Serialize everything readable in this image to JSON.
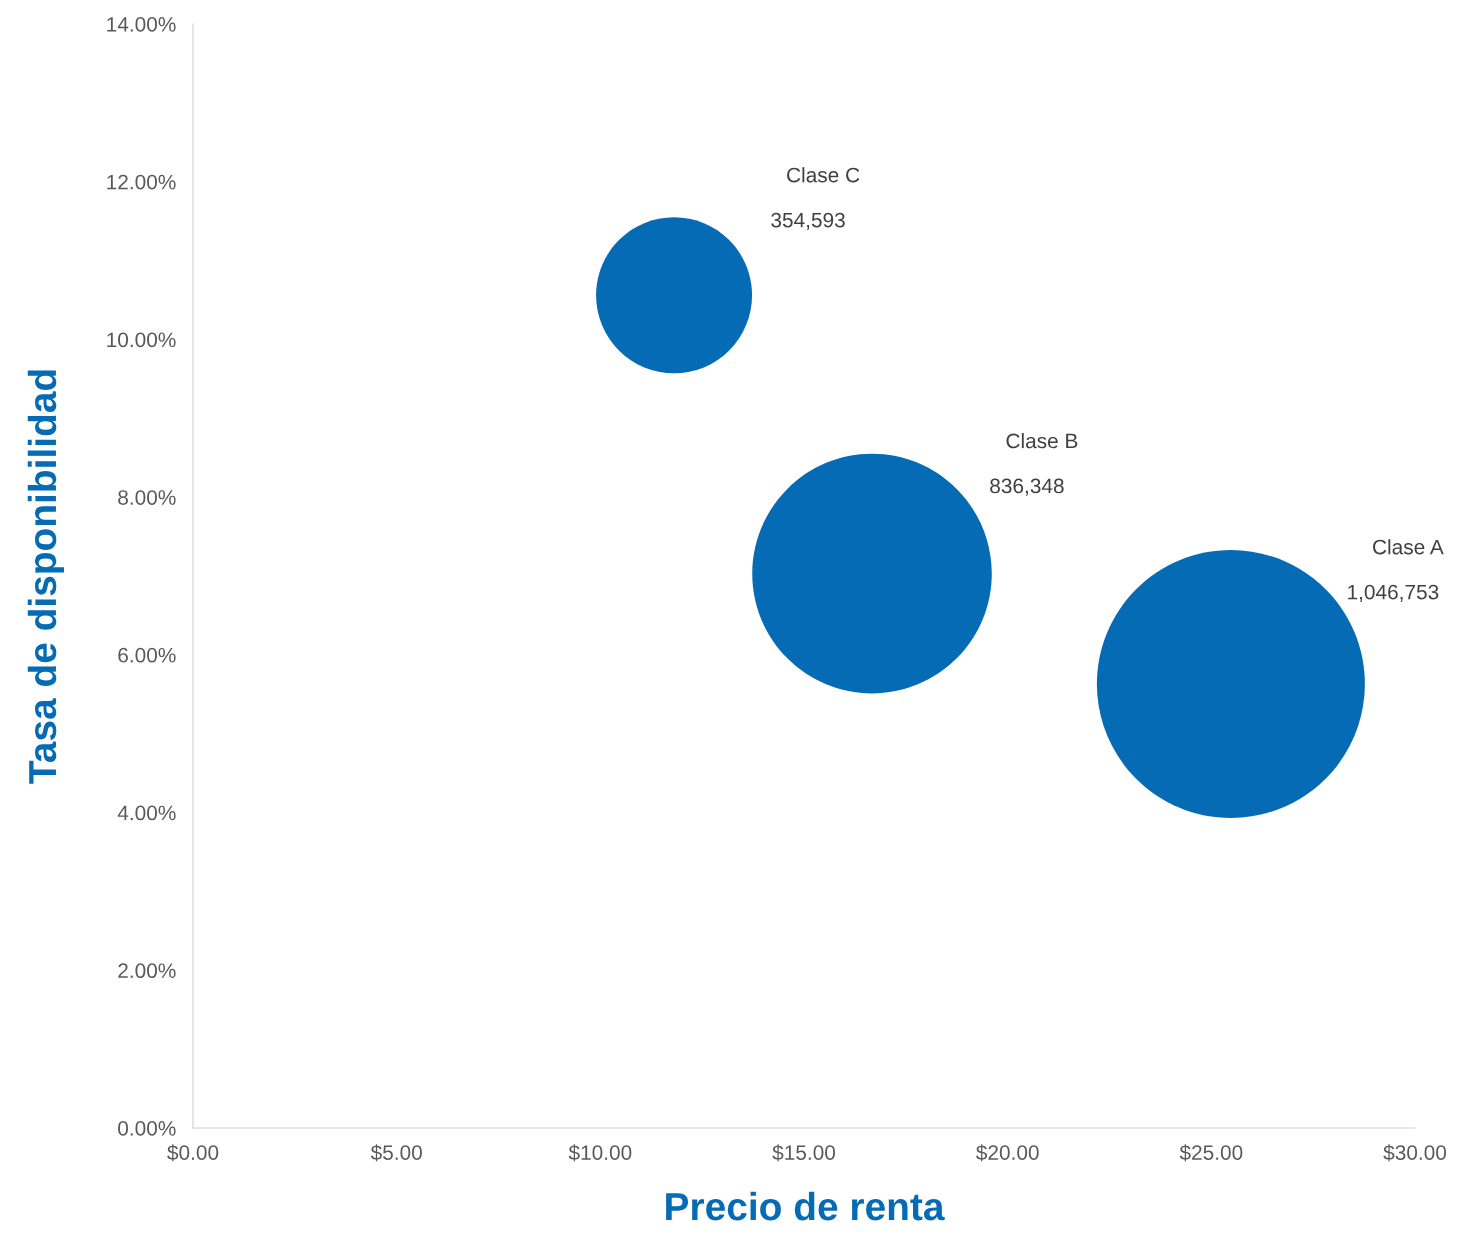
{
  "chart_data": {
    "type": "bubble",
    "xlabel": "Precio de renta",
    "ylabel": "Tasa de disponibilidad",
    "series": [
      {
        "name": "Clase C",
        "color": "#056bb4",
        "x": [
          11.81
        ],
        "values": [
          10.56
        ],
        "sizes": [
          354593
        ],
        "value_labels": [
          "354,593"
        ]
      },
      {
        "name": "Clase B",
        "color": "#056bb4",
        "x": [
          16.67
        ],
        "values": [
          7.03
        ],
        "sizes": [
          836348
        ],
        "value_labels": [
          "836,348"
        ]
      },
      {
        "name": "Clase A",
        "color": "#056bb4",
        "x": [
          25.48
        ],
        "values": [
          5.63
        ],
        "sizes": [
          1046753
        ],
        "value_labels": [
          "1,046,753"
        ]
      }
    ],
    "xlim": [
      0,
      30
    ],
    "xticks": [
      {
        "value": 0,
        "label": "$0.00"
      },
      {
        "value": 5,
        "label": "$5.00"
      },
      {
        "value": 10,
        "label": "$10.00"
      },
      {
        "value": 15,
        "label": "$15.00"
      },
      {
        "value": 20,
        "label": "$20.00"
      },
      {
        "value": 25,
        "label": "$25.00"
      },
      {
        "value": 30,
        "label": "$30.00"
      }
    ],
    "ylim": [
      0,
      14
    ],
    "yticks": [
      {
        "value": 0,
        "label": "0.00%"
      },
      {
        "value": 2,
        "label": "2.00%"
      },
      {
        "value": 4,
        "label": "4.00%"
      },
      {
        "value": 6,
        "label": "6.00%"
      },
      {
        "value": 8,
        "label": "8.00%"
      },
      {
        "value": 10,
        "label": "10.00%"
      },
      {
        "value": 12,
        "label": "12.00%"
      },
      {
        "value": 14,
        "label": "14.00%"
      }
    ],
    "grid": false,
    "legend": false
  }
}
